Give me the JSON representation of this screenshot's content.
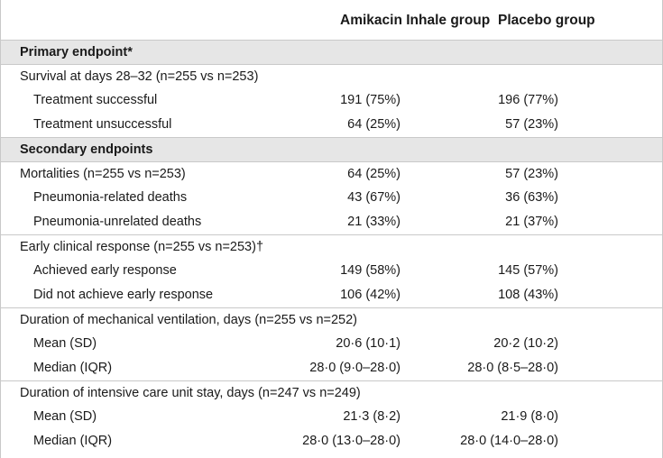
{
  "header": {
    "col1": "Amikacin Inhale group",
    "col2": "Placebo group"
  },
  "rows": [
    {
      "label": "Primary endpoint*",
      "v1": "",
      "v2": ""
    },
    {
      "label": "Survival at days 28–32 (n=255 vs n=253)",
      "v1": "",
      "v2": ""
    },
    {
      "label": "Treatment successful",
      "v1": "191 (75%)",
      "v2": "196 (77%)"
    },
    {
      "label": "Treatment unsuccessful",
      "v1": "64 (25%)",
      "v2": "57 (23%)"
    },
    {
      "label": "Secondary endpoints",
      "v1": "",
      "v2": ""
    },
    {
      "label": "Mortalities (n=255 vs n=253)",
      "v1": "64 (25%)",
      "v2": "57 (23%)"
    },
    {
      "label": "Pneumonia-related deaths",
      "v1": "43 (67%)",
      "v2": "36 (63%)"
    },
    {
      "label": "Pneumonia-unrelated deaths",
      "v1": "21 (33%)",
      "v2": "21 (37%)"
    },
    {
      "label": "Early clinical response (n=255 vs n=253)†",
      "v1": "",
      "v2": ""
    },
    {
      "label": "Achieved early response",
      "v1": "149 (58%)",
      "v2": "145 (57%)"
    },
    {
      "label": "Did not achieve early response",
      "v1": "106 (42%)",
      "v2": "108 (43%)"
    },
    {
      "label": "Duration of mechanical ventilation, days (n=255 vs n=252)",
      "v1": "",
      "v2": ""
    },
    {
      "label": "Mean (SD)",
      "v1": "20·6 (10·1)",
      "v2": "20·2 (10·2)"
    },
    {
      "label": "Median (IQR)",
      "v1": "28·0 (9·0–28·0)",
      "v2": "28·0 (8·5–28·0)"
    },
    {
      "label": "Duration of intensive care unit stay, days (n=247 vs n=249)",
      "v1": "",
      "v2": ""
    },
    {
      "label": "Mean (SD)",
      "v1": "21·3 (8·2)",
      "v2": "21·9 (8·0)"
    },
    {
      "label": "Median (IQR)",
      "v1": "28·0 (13·0–28·0)",
      "v2": "28·0 (14·0–28·0)"
    }
  ]
}
